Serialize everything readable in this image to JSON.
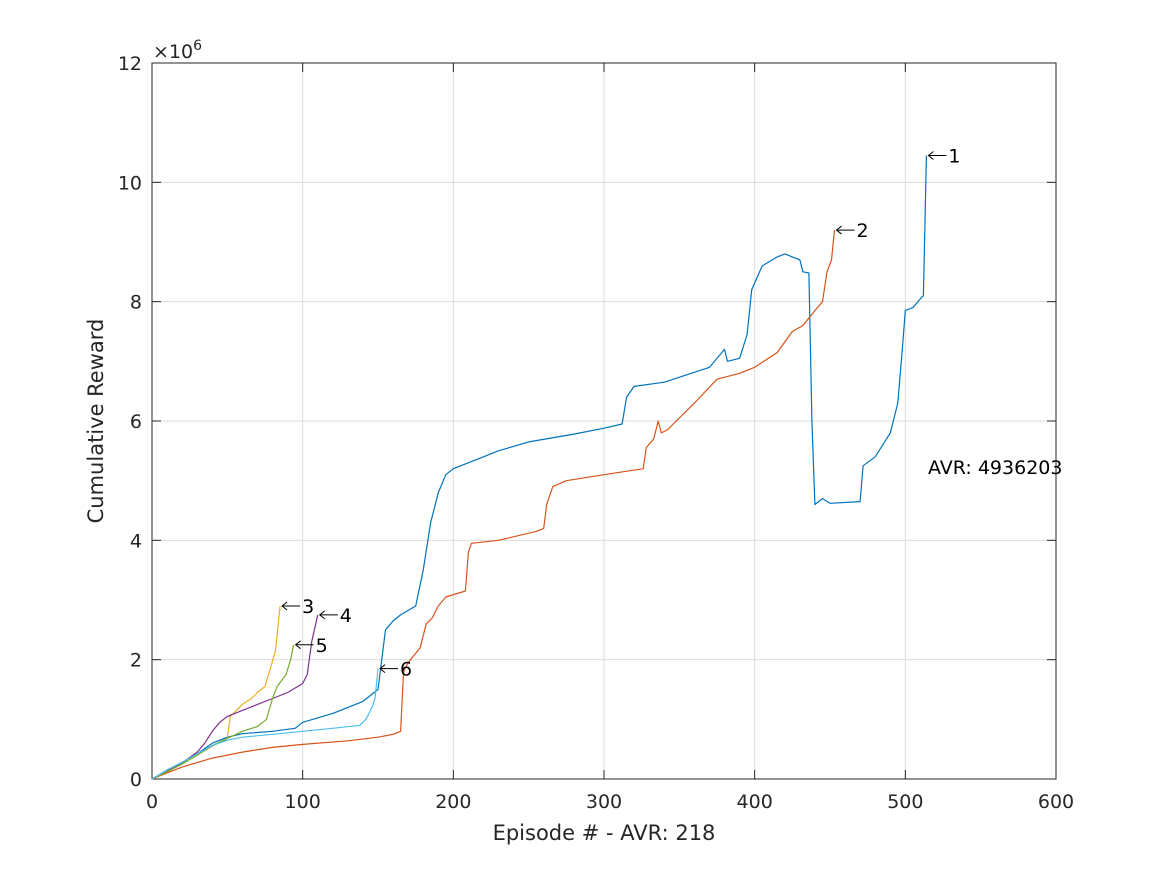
{
  "chart_data": {
    "type": "line",
    "xlabel": "Episode # - AVR: 218",
    "ylabel": "Cumulative Reward",
    "xlim": [
      0,
      600
    ],
    "ylim": [
      0,
      12000000
    ],
    "xticks": [
      0,
      100,
      200,
      300,
      400,
      500,
      600
    ],
    "yticks": [
      0,
      2,
      4,
      6,
      8,
      10,
      12
    ],
    "y_multiplier": {
      "base": "10",
      "exponent": "6",
      "glyph": "×"
    },
    "grid": true,
    "annotation": "AVR: 4936203",
    "series": [
      {
        "label": "1",
        "color": "#0072BD",
        "points": [
          [
            0,
            0
          ],
          [
            10,
            150000
          ],
          [
            20,
            280000
          ],
          [
            30,
            420000
          ],
          [
            40,
            600000
          ],
          [
            50,
            700000
          ],
          [
            60,
            760000
          ],
          [
            80,
            800000
          ],
          [
            95,
            850000
          ],
          [
            100,
            950000
          ],
          [
            120,
            1100000
          ],
          [
            140,
            1300000
          ],
          [
            150,
            1500000
          ],
          [
            152,
            1900000
          ],
          [
            155,
            2500000
          ],
          [
            160,
            2650000
          ],
          [
            165,
            2750000
          ],
          [
            175,
            2900000
          ],
          [
            180,
            3500000
          ],
          [
            185,
            4300000
          ],
          [
            190,
            4800000
          ],
          [
            195,
            5100000
          ],
          [
            200,
            5200000
          ],
          [
            215,
            5350000
          ],
          [
            230,
            5500000
          ],
          [
            250,
            5650000
          ],
          [
            280,
            5780000
          ],
          [
            300,
            5880000
          ],
          [
            312,
            5950000
          ],
          [
            315,
            6400000
          ],
          [
            320,
            6580000
          ],
          [
            340,
            6650000
          ],
          [
            370,
            6900000
          ],
          [
            380,
            7200000
          ],
          [
            382,
            7000000
          ],
          [
            390,
            7050000
          ],
          [
            395,
            7450000
          ],
          [
            398,
            8200000
          ],
          [
            405,
            8600000
          ],
          [
            415,
            8750000
          ],
          [
            420,
            8800000
          ],
          [
            425,
            8750000
          ],
          [
            430,
            8700000
          ],
          [
            432,
            8500000
          ],
          [
            436,
            8480000
          ],
          [
            438,
            6000000
          ],
          [
            440,
            4600000
          ],
          [
            445,
            4700000
          ],
          [
            450,
            4620000
          ],
          [
            470,
            4650000
          ],
          [
            472,
            5250000
          ],
          [
            480,
            5400000
          ],
          [
            490,
            5800000
          ],
          [
            495,
            6300000
          ],
          [
            498,
            7200000
          ],
          [
            500,
            7850000
          ],
          [
            505,
            7900000
          ],
          [
            510,
            8050000
          ],
          [
            512,
            8100000
          ],
          [
            514,
            10450000
          ]
        ]
      },
      {
        "label": "2",
        "color": "#D95319",
        "points": [
          [
            0,
            0
          ],
          [
            20,
            200000
          ],
          [
            40,
            350000
          ],
          [
            60,
            450000
          ],
          [
            80,
            530000
          ],
          [
            100,
            580000
          ],
          [
            130,
            640000
          ],
          [
            150,
            700000
          ],
          [
            160,
            750000
          ],
          [
            165,
            800000
          ],
          [
            167,
            1800000
          ],
          [
            170,
            1950000
          ],
          [
            178,
            2200000
          ],
          [
            182,
            2600000
          ],
          [
            186,
            2700000
          ],
          [
            190,
            2900000
          ],
          [
            195,
            3050000
          ],
          [
            208,
            3150000
          ],
          [
            210,
            3800000
          ],
          [
            212,
            3950000
          ],
          [
            230,
            4000000
          ],
          [
            255,
            4150000
          ],
          [
            260,
            4200000
          ],
          [
            262,
            4600000
          ],
          [
            266,
            4900000
          ],
          [
            275,
            5000000
          ],
          [
            300,
            5100000
          ],
          [
            326,
            5200000
          ],
          [
            328,
            5550000
          ],
          [
            333,
            5700000
          ],
          [
            336,
            6000000
          ],
          [
            338,
            5800000
          ],
          [
            342,
            5850000
          ],
          [
            350,
            6050000
          ],
          [
            360,
            6300000
          ],
          [
            375,
            6700000
          ],
          [
            390,
            6800000
          ],
          [
            400,
            6900000
          ],
          [
            415,
            7150000
          ],
          [
            425,
            7500000
          ],
          [
            432,
            7600000
          ],
          [
            440,
            7850000
          ],
          [
            445,
            8000000
          ],
          [
            448,
            8500000
          ],
          [
            451,
            8700000
          ],
          [
            453,
            9200000
          ]
        ]
      },
      {
        "label": "3",
        "color": "#EDB120",
        "points": [
          [
            0,
            0
          ],
          [
            10,
            120000
          ],
          [
            20,
            260000
          ],
          [
            30,
            400000
          ],
          [
            40,
            550000
          ],
          [
            50,
            680000
          ],
          [
            52,
            1050000
          ],
          [
            60,
            1250000
          ],
          [
            66,
            1350000
          ],
          [
            70,
            1450000
          ],
          [
            75,
            1550000
          ],
          [
            78,
            1800000
          ],
          [
            82,
            2150000
          ],
          [
            85,
            2900000
          ]
        ]
      },
      {
        "label": "4",
        "color": "#7E2F8E",
        "points": [
          [
            0,
            0
          ],
          [
            10,
            130000
          ],
          [
            20,
            270000
          ],
          [
            30,
            450000
          ],
          [
            35,
            600000
          ],
          [
            40,
            800000
          ],
          [
            45,
            950000
          ],
          [
            50,
            1050000
          ],
          [
            60,
            1150000
          ],
          [
            70,
            1250000
          ],
          [
            80,
            1350000
          ],
          [
            90,
            1450000
          ],
          [
            100,
            1600000
          ],
          [
            103,
            1750000
          ],
          [
            106,
            2300000
          ],
          [
            110,
            2750000
          ]
        ]
      },
      {
        "label": "5",
        "color": "#77AC30",
        "points": [
          [
            0,
            0
          ],
          [
            10,
            120000
          ],
          [
            20,
            250000
          ],
          [
            30,
            400000
          ],
          [
            40,
            560000
          ],
          [
            50,
            680000
          ],
          [
            60,
            800000
          ],
          [
            70,
            880000
          ],
          [
            76,
            1000000
          ],
          [
            80,
            1350000
          ],
          [
            83,
            1550000
          ],
          [
            86,
            1650000
          ],
          [
            89,
            1750000
          ],
          [
            92,
            2000000
          ],
          [
            94,
            2250000
          ]
        ]
      },
      {
        "label": "6",
        "color": "#4DBEEE",
        "points": [
          [
            0,
            0
          ],
          [
            10,
            150000
          ],
          [
            20,
            280000
          ],
          [
            30,
            420000
          ],
          [
            40,
            560000
          ],
          [
            50,
            650000
          ],
          [
            60,
            700000
          ],
          [
            80,
            750000
          ],
          [
            100,
            800000
          ],
          [
            120,
            850000
          ],
          [
            138,
            900000
          ],
          [
            142,
            1000000
          ],
          [
            146,
            1200000
          ],
          [
            148,
            1350000
          ],
          [
            150,
            1850000
          ]
        ]
      }
    ]
  }
}
